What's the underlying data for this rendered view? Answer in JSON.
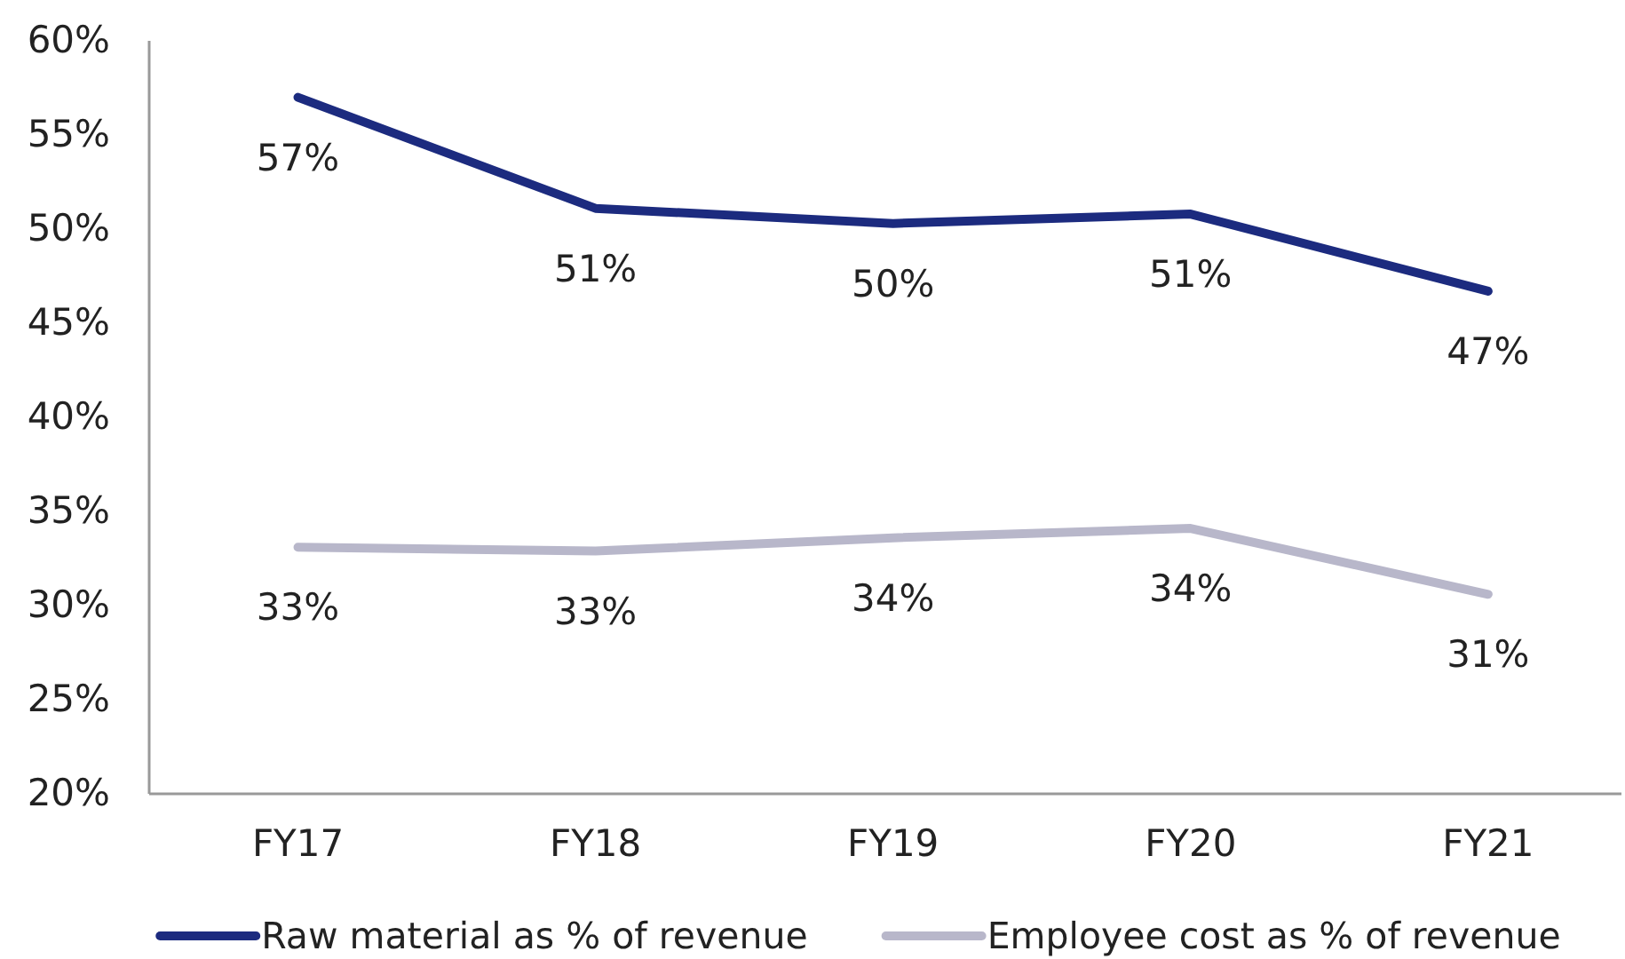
{
  "chart_data": {
    "type": "line",
    "categories": [
      "FY17",
      "FY18",
      "FY19",
      "FY20",
      "FY21"
    ],
    "series": [
      {
        "name": "Raw material as % of revenue",
        "color": "#1c2b7f",
        "values": [
          57.0,
          51.1,
          50.3,
          50.8,
          46.7
        ],
        "value_labels": [
          "57%",
          "51%",
          "50%",
          "51%",
          "47%"
        ]
      },
      {
        "name": "Employee cost as % of revenue",
        "color": "#b8b7ca",
        "values": [
          33.1,
          32.9,
          33.6,
          34.1,
          30.6
        ],
        "value_labels": [
          "33%",
          "33%",
          "34%",
          "34%",
          "31%"
        ]
      }
    ],
    "ylim": [
      20,
      60
    ],
    "yticks": [
      {
        "value": 20,
        "label": "20%"
      },
      {
        "value": 25,
        "label": "25%"
      },
      {
        "value": 30,
        "label": "30%"
      },
      {
        "value": 35,
        "label": "35%"
      },
      {
        "value": 40,
        "label": "40%"
      },
      {
        "value": 45,
        "label": "45%"
      },
      {
        "value": 50,
        "label": "50%"
      },
      {
        "value": 55,
        "label": "55%"
      },
      {
        "value": 60,
        "label": "60%"
      }
    ],
    "grid": false,
    "legend": "bottom"
  }
}
